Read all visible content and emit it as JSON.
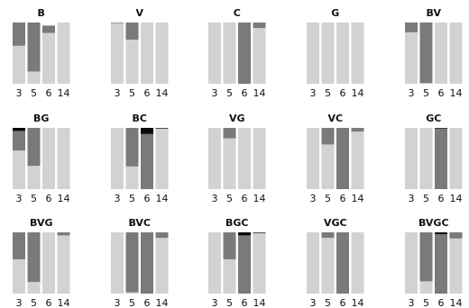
{
  "chart_data": {
    "type": "bar",
    "layout": "small-multiples, 3 rows x 5 columns, stacked bars",
    "categories": [
      "3",
      "5",
      "6",
      "14"
    ],
    "ylim": [
      0,
      1
    ],
    "segment_order": [
      "light",
      "mid",
      "dark"
    ],
    "colors": {
      "light": "#d2d2d2",
      "mid": "#7a7a7a",
      "dark": "#0a0a0a"
    },
    "panels": [
      {
        "title": "B",
        "light": [
          0.62,
          0.2,
          0.83,
          1.0
        ],
        "mid": [
          0.38,
          0.8,
          0.12,
          0.0
        ],
        "dark": [
          0,
          0,
          0,
          0
        ]
      },
      {
        "title": "V",
        "light": [
          0.99,
          0.72,
          1.0,
          1.0
        ],
        "mid": [
          0.01,
          0.28,
          0.0,
          0.0
        ],
        "dark": [
          0,
          0,
          0,
          0
        ]
      },
      {
        "title": "C",
        "light": [
          1.0,
          1.0,
          0.0,
          0.91
        ],
        "mid": [
          0.0,
          0.0,
          1.0,
          0.09
        ],
        "dark": [
          0,
          0,
          0,
          0
        ]
      },
      {
        "title": "G",
        "light": [
          1.0,
          1.0,
          1.0,
          1.0
        ],
        "mid": [
          0.0,
          0.0,
          0.0,
          0.0
        ],
        "dark": [
          0,
          0,
          0,
          0
        ]
      },
      {
        "title": "BV",
        "light": [
          0.84,
          0.01,
          1.0,
          1.0
        ],
        "mid": [
          0.16,
          0.99,
          0.0,
          0.0
        ],
        "dark": [
          0,
          0,
          0,
          0
        ]
      },
      {
        "title": "BG",
        "light": [
          0.63,
          0.38,
          1.0,
          1.0
        ],
        "mid": [
          0.32,
          0.62,
          0.0,
          0.0
        ],
        "dark": [
          0.05,
          0,
          0,
          0
        ]
      },
      {
        "title": "BC",
        "light": [
          1.0,
          0.37,
          0.0,
          0.99
        ],
        "mid": [
          0.0,
          0.63,
          0.9,
          0.0
        ],
        "dark": [
          0,
          0,
          0.1,
          0.01
        ]
      },
      {
        "title": "VG",
        "light": [
          1.0,
          0.83,
          1.0,
          1.0
        ],
        "mid": [
          0.0,
          0.17,
          0.0,
          0.0
        ],
        "dark": [
          0,
          0,
          0,
          0
        ]
      },
      {
        "title": "VC",
        "light": [
          1.0,
          0.73,
          0.0,
          0.94
        ],
        "mid": [
          0.0,
          0.27,
          1.0,
          0.06
        ],
        "dark": [
          0,
          0,
          0,
          0
        ]
      },
      {
        "title": "GC",
        "light": [
          1.0,
          1.0,
          0.0,
          1.0
        ],
        "mid": [
          0.0,
          0.0,
          0.99,
          0.0
        ],
        "dark": [
          0,
          0,
          0.01,
          0
        ]
      },
      {
        "title": "BVG",
        "light": [
          0.56,
          0.19,
          1.0,
          0.95
        ],
        "mid": [
          0.44,
          0.81,
          0.0,
          0.05
        ],
        "dark": [
          0,
          0,
          0,
          0
        ]
      },
      {
        "title": "BVC",
        "light": [
          1.0,
          0.02,
          0.0,
          0.91
        ],
        "mid": [
          0.0,
          0.98,
          1.0,
          0.09
        ],
        "dark": [
          0,
          0,
          0,
          0
        ]
      },
      {
        "title": "BGC",
        "light": [
          1.0,
          0.56,
          0.0,
          0.99
        ],
        "mid": [
          0.0,
          0.44,
          0.95,
          0.0
        ],
        "dark": [
          0,
          0,
          0.05,
          0.01
        ]
      },
      {
        "title": "VGC",
        "light": [
          1.0,
          0.91,
          0.0,
          1.0
        ],
        "mid": [
          0.0,
          0.09,
          1.0,
          0.0
        ],
        "dark": [
          0,
          0,
          0,
          0
        ]
      },
      {
        "title": "BVGC",
        "light": [
          1.0,
          0.2,
          0.0,
          0.9
        ],
        "mid": [
          0.0,
          0.8,
          0.97,
          0.1
        ],
        "dark": [
          0,
          0,
          0.03,
          0
        ]
      }
    ]
  }
}
